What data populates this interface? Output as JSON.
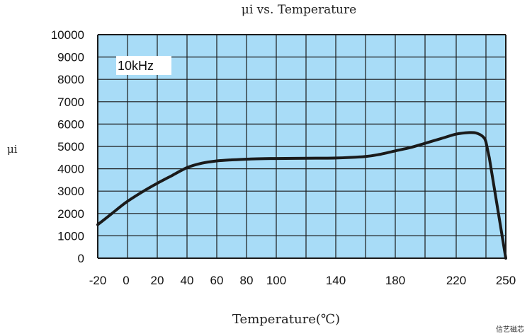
{
  "chart_data": {
    "type": "line",
    "title": "μi vs.   Temperature",
    "xlabel": "Temperature(℃)",
    "ylabel": "μi",
    "annotation": "10kHz",
    "ylim": [
      0,
      10000
    ],
    "y_ticks": [
      0,
      1000,
      2000,
      3000,
      4000,
      5000,
      6000,
      7000,
      8000,
      9000,
      10000
    ],
    "x_tick_labels": [
      {
        "x": -20,
        "label": "-20"
      },
      {
        "x": 0,
        "label": "0"
      },
      {
        "x": 20,
        "label": "20"
      },
      {
        "x": 40,
        "label": "40"
      },
      {
        "x": 60,
        "label": "60"
      },
      {
        "x": 80,
        "label": "80"
      },
      {
        "x": 100,
        "label": "100"
      },
      {
        "x": 140,
        "label": "140"
      },
      {
        "x": 180,
        "label": "180"
      },
      {
        "x": 220,
        "label": "220"
      },
      {
        "x": 250,
        "label": "250"
      }
    ],
    "grid": true,
    "colors": {
      "plot_background": "#a8dcf7",
      "grid": "#1a1a1a",
      "line": "#1a1a1a"
    },
    "series": [
      {
        "x": [
          -20,
          -10,
          0,
          10,
          20,
          30,
          40,
          50,
          60,
          70,
          80,
          90,
          100,
          120,
          140,
          160,
          170,
          180,
          190,
          200,
          210,
          220,
          228,
          232,
          236,
          238,
          240,
          250
        ],
        "y": [
          1500,
          2000,
          2500,
          2950,
          3350,
          3700,
          4050,
          4250,
          4350,
          4400,
          4430,
          4450,
          4460,
          4470,
          4480,
          4550,
          4650,
          4800,
          4950,
          5150,
          5350,
          5550,
          5620,
          5600,
          5450,
          5200,
          4500,
          0
        ]
      }
    ]
  },
  "watermark": "信艺磁芯"
}
